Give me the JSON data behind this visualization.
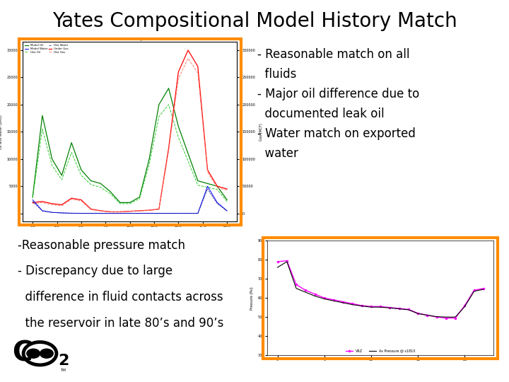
{
  "title": "Yates Compositional Model History Match",
  "title_fontsize": 20,
  "title_fontweight": "normal",
  "bg_color": "#ffffff",
  "orange_border": "#FF8C00",
  "border_lw": 3,
  "top_right_text_line1": "- Reasonable match on all",
  "top_right_text_line2": "  fluids",
  "top_right_text_line3": "- Major oil difference due to",
  "top_right_text_line4": "  documented leak oil",
  "top_right_text_line5": "- Water match on exported",
  "top_right_text_line6": "  water",
  "bottom_left_text_line1": "-Reasonable pressure match",
  "bottom_left_text_line2": "- Discrepancy due to large",
  "bottom_left_text_line3": "  difference in fluid contacts across",
  "bottom_left_text_line4": "  the reservoir in late 80’s and 90’s",
  "text_fontsize": 12,
  "prod_chart": {
    "green_oil_y": [
      30000,
      180000,
      100000,
      70000,
      130000,
      80000,
      60000,
      55000,
      40000,
      20000,
      20000,
      30000,
      100000,
      200000,
      230000,
      160000,
      110000,
      60000,
      55000,
      50000,
      25000
    ],
    "green_hist_y": [
      28000,
      155000,
      88000,
      62000,
      112000,
      70000,
      53000,
      48000,
      36000,
      18000,
      18000,
      27000,
      90000,
      178000,
      200000,
      140000,
      96000,
      52000,
      48000,
      44000,
      22000
    ],
    "red_gas_y": [
      20000,
      22000,
      18000,
      16000,
      28000,
      25000,
      8000,
      5000,
      3000,
      3000,
      4000,
      5000,
      6000,
      8000,
      120000,
      260000,
      300000,
      270000,
      80000,
      50000,
      45000
    ],
    "red_hist_y": [
      18000,
      20000,
      16000,
      14000,
      26000,
      23000,
      7000,
      4500,
      2800,
      2800,
      3800,
      4700,
      5700,
      7500,
      115000,
      248000,
      285000,
      258000,
      76000,
      47000,
      43000
    ],
    "blue_water_y": [
      25000,
      5000,
      2000,
      1000,
      500,
      200,
      100,
      100,
      100,
      100,
      200,
      100,
      200,
      100,
      200,
      100,
      200,
      100,
      50000,
      20000,
      5000
    ],
    "blue_hist_y": [
      22000,
      4500,
      1800,
      900,
      450,
      180,
      90,
      90,
      90,
      90,
      180,
      90,
      180,
      90,
      180,
      90,
      180,
      90,
      45000,
      18000,
      4500
    ]
  },
  "press_chart": {
    "magenta_y": [
      790,
      795,
      670,
      640,
      620,
      600,
      590,
      580,
      570,
      560,
      555,
      555,
      550,
      545,
      540,
      520,
      510,
      500,
      495,
      495,
      560,
      640,
      650
    ],
    "black_y": [
      760,
      790,
      650,
      630,
      610,
      595,
      585,
      575,
      565,
      558,
      552,
      552,
      548,
      543,
      538,
      518,
      510,
      502,
      500,
      500,
      555,
      635,
      645
    ]
  }
}
